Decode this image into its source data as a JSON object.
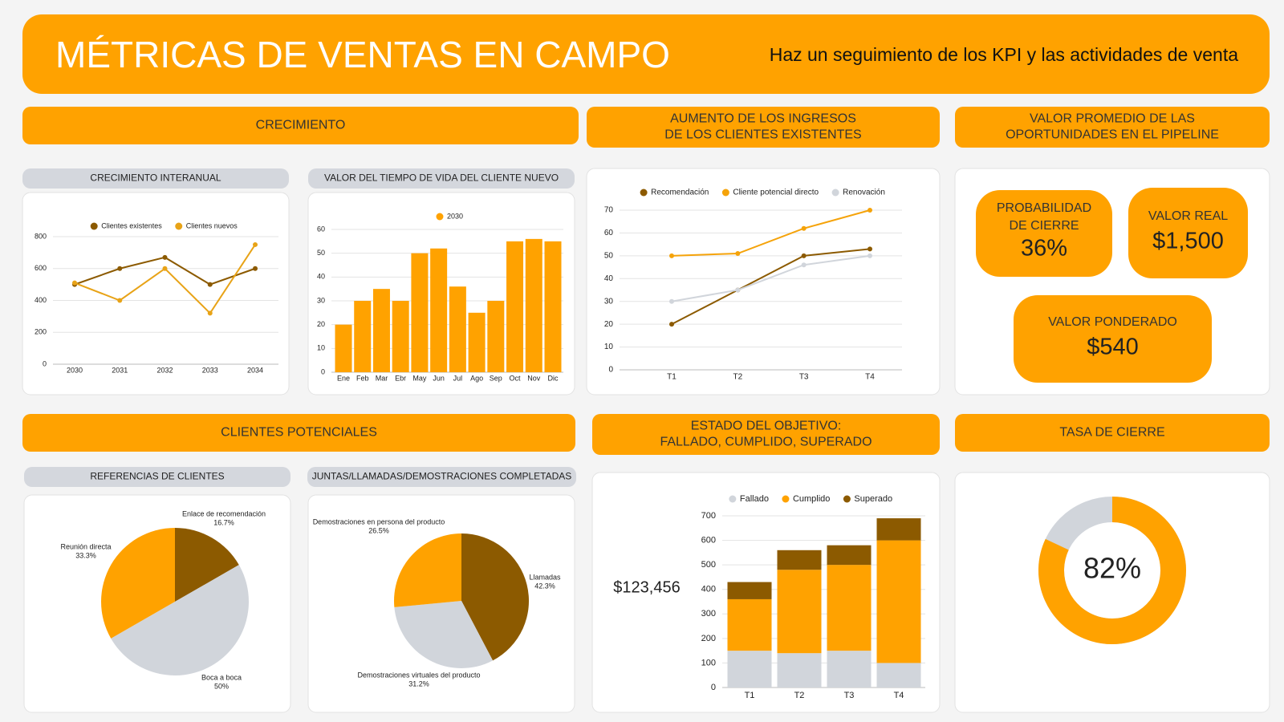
{
  "header": {
    "title": "MÉTRICAS DE VENTAS EN CAMPO",
    "subtitle": "Haz un seguimiento de los KPI y las actividades de venta"
  },
  "sections": [
    {
      "lines": [
        "CRECIMIENTO"
      ]
    },
    {
      "lines": [
        "AUMENTO DE LOS INGRESOS",
        "DE LOS CLIENTES EXISTENTES"
      ]
    },
    {
      "lines": [
        "VALOR PROMEDIO DE LAS",
        "OPORTUNIDADES EN EL PIPELINE"
      ]
    },
    {
      "lines": [
        "CLIENTES POTENCIALES"
      ]
    },
    {
      "lines": [
        "ESTADO DEL OBJETIVO:",
        "FALLADO, CUMPLIDO, SUPERADO"
      ]
    },
    {
      "lines": [
        "TASA DE CIERRE"
      ]
    }
  ],
  "kpis": [
    {
      "label_lines": [
        "PROBABILIDAD",
        "DE CIERRE"
      ],
      "value": "36%"
    },
    {
      "label_lines": [
        "VALOR REAL"
      ],
      "value": "$1,500"
    },
    {
      "label_lines": [
        "VALOR PONDERADO"
      ],
      "value": "$540"
    }
  ],
  "chart_data": [
    {
      "type": "line",
      "title": "CRECIMIENTO INTERANUAL",
      "categories": [
        "2030",
        "2031",
        "2032",
        "2033",
        "2034"
      ],
      "series": [
        {
          "name": "Clientes existentes",
          "color": "#8c5a00",
          "values": [
            500,
            600,
            670,
            500,
            600
          ]
        },
        {
          "name": "Clientes nuevos",
          "color": "#e8a317",
          "values": [
            510,
            400,
            600,
            320,
            750
          ]
        }
      ],
      "ylim": [
        0,
        800
      ],
      "yticks": [
        0,
        200,
        400,
        600,
        800
      ],
      "grid": true,
      "legend": "top"
    },
    {
      "type": "bar",
      "title": "VALOR DEL TIEMPO DE VIDA DEL CLIENTE NUEVO",
      "categories": [
        "Ene",
        "Feb",
        "Mar",
        "Ebr",
        "May",
        "Jun",
        "Jul",
        "Ago",
        "Sep",
        "Oct",
        "Nov",
        "Dic"
      ],
      "series": [
        {
          "name": "2030",
          "color": "#ffa200",
          "values": [
            20,
            30,
            35,
            30,
            50,
            52,
            36,
            25,
            30,
            55,
            56,
            55
          ]
        }
      ],
      "ylim": [
        0,
        60
      ],
      "yticks": [
        0,
        10,
        20,
        30,
        40,
        50,
        60
      ],
      "grid": true,
      "legend": "top"
    },
    {
      "type": "line",
      "categories": [
        "T1",
        "T2",
        "T3",
        "T4"
      ],
      "series": [
        {
          "name": "Recomendación",
          "color": "#8c5a00",
          "values": [
            20,
            35,
            50,
            53
          ]
        },
        {
          "name": "Cliente potencial directo",
          "color": "#f5a30a",
          "values": [
            50,
            51,
            62,
            70
          ]
        },
        {
          "name": "Renovación",
          "color": "#d1d5db",
          "values": [
            30,
            35,
            46,
            50
          ]
        }
      ],
      "ylim": [
        0,
        70
      ],
      "yticks": [
        0,
        10,
        20,
        30,
        40,
        50,
        60,
        70
      ],
      "grid": true,
      "legend": "top"
    },
    {
      "type": "pie",
      "title": "REFERENCIAS DE CLIENTES",
      "categories": [
        "Enlace de recomendación",
        "Boca a boca",
        "Reunión directa"
      ],
      "values": [
        16.7,
        50,
        33.3
      ],
      "value_labels": [
        "16.7%",
        "50%",
        "33.3%"
      ],
      "colors": [
        "#8c5a00",
        "#d1d5db",
        "#ffa200"
      ]
    },
    {
      "type": "pie",
      "title": "JUNTAS/LLAMADAS/DEMOSTRACIONES COMPLETADAS",
      "categories": [
        "Llamadas",
        "Demostraciones virtuales del producto",
        "Demostraciones en persona del producto"
      ],
      "values": [
        42.3,
        31.2,
        26.5
      ],
      "value_labels": [
        "42.3%",
        "31.2%",
        "26.5%"
      ],
      "colors": [
        "#8c5a00",
        "#d1d5db",
        "#ffa200"
      ]
    },
    {
      "type": "bar",
      "stacked": true,
      "annotation": "$123,456",
      "categories": [
        "T1",
        "T2",
        "T3",
        "T4"
      ],
      "series": [
        {
          "name": "Fallado",
          "color": "#d1d5db",
          "values": [
            150,
            140,
            150,
            100
          ]
        },
        {
          "name": "Cumplido",
          "color": "#ffa200",
          "values": [
            210,
            340,
            350,
            500
          ]
        },
        {
          "name": "Superado",
          "color": "#8c5a00",
          "values": [
            70,
            80,
            80,
            90
          ]
        }
      ],
      "ylim": [
        0,
        700
      ],
      "yticks": [
        0,
        100,
        200,
        300,
        400,
        500,
        600,
        700
      ],
      "grid": true,
      "legend": "top"
    },
    {
      "type": "donut",
      "values": [
        82
      ],
      "value_labels": [
        "82%"
      ],
      "color": "#ffa200",
      "track_color": "#d1d5db"
    }
  ]
}
